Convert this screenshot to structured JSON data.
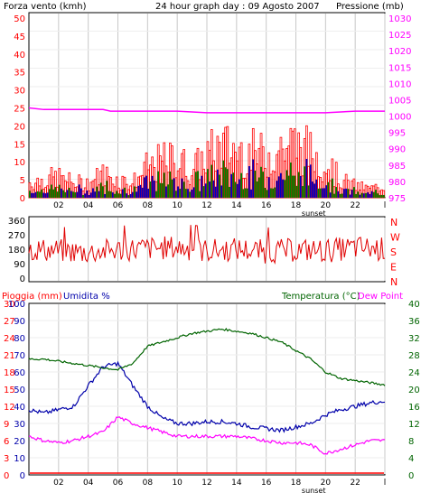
{
  "header": {
    "left_label": "Forza vento (kmh)",
    "center_label": "24 hour graph day : 09 Agosto 2007",
    "right_label": "Pressione (mb)"
  },
  "colors": {
    "wind": "#ff0000",
    "wind_avg": "#0000c0",
    "wind_low": "#008000",
    "pressure": "#ff00ff",
    "direction": "#e00000",
    "humidity": "#0000aa",
    "temperature": "#006400",
    "dewpoint": "#ff00ff",
    "rain": "#ff0000",
    "frame": "#000000",
    "grid": "#c8c8c8"
  },
  "x_ticks": [
    "02",
    "04",
    "06",
    "08",
    "10",
    "12",
    "14",
    "16",
    "18",
    "20",
    "22",
    "l"
  ],
  "sunset_label": "sunset",
  "panel_wind": {
    "left_ticks": [
      "0",
      "5",
      "10",
      "15",
      "20",
      "25",
      "30",
      "35",
      "40",
      "45",
      "50"
    ],
    "right_ticks": [
      "975",
      "980",
      "985",
      "990",
      "995",
      "1000",
      "1005",
      "1010",
      "1015",
      "1020",
      "1025",
      "1030"
    ]
  },
  "panel_direction": {
    "left_ticks": [
      "0",
      "90",
      "180",
      "270",
      "360"
    ],
    "right_letters": [
      "N",
      "W",
      "S",
      "E",
      "N"
    ]
  },
  "panel_temp": {
    "left_label_rain": "Pioggia (mm)",
    "left_label_hum": "Umidita %",
    "right_label_temp": "Temperatura (°C)",
    "right_label_dew": "Dew Point",
    "rain_ticks": [
      "0",
      "3",
      "6",
      "9",
      "12",
      "15",
      "18",
      "21",
      "24",
      "27",
      "30"
    ],
    "hum_ticks": [
      "0",
      "10",
      "20",
      "30",
      "40",
      "50",
      "60",
      "70",
      "80",
      "90",
      "100"
    ],
    "temp_ticks": [
      "0",
      "4",
      "8",
      "12",
      "16",
      "20",
      "24",
      "28",
      "32",
      "36",
      "40"
    ]
  },
  "chart_data": [
    {
      "type": "bar",
      "title": "24 hour graph day : 09 Agosto 2007",
      "xlabel": "",
      "ylabel": "Forza vento (kmh)",
      "ylim": [
        0,
        50
      ],
      "y2label": "Pressione (mb)",
      "y2lim": [
        975,
        1030
      ],
      "x_hours": [
        0,
        24
      ],
      "series": [
        {
          "name": "Forza vento (kmh)",
          "kind": "wind_gust_bars",
          "x": [
            0,
            1,
            2,
            3,
            4,
            5,
            6,
            7,
            8,
            9,
            10,
            11,
            12,
            13,
            14,
            15,
            16,
            17,
            18,
            19,
            20,
            21,
            22,
            23,
            24
          ],
          "values": [
            5,
            6,
            7,
            5,
            5,
            8,
            6,
            5,
            10,
            12,
            13,
            9,
            14,
            17,
            16,
            15,
            14,
            17,
            18,
            15,
            12,
            6,
            4,
            3,
            4
          ]
        },
        {
          "name": "Pressione (mb)",
          "kind": "line",
          "x": [
            0,
            1,
            5,
            5.5,
            6,
            10,
            12,
            15,
            20,
            22,
            24
          ],
          "values": [
            1002.5,
            1002,
            1002,
            1001.5,
            1001.5,
            1001.5,
            1001,
            1001,
            1001,
            1001.5,
            1001.5
          ]
        }
      ],
      "grid": true
    },
    {
      "type": "line",
      "title": "",
      "ylabel": "",
      "ylim": [
        0,
        360
      ],
      "y2_labels": [
        "N",
        "W",
        "S",
        "E",
        "N"
      ],
      "x_hours": [
        0,
        24
      ],
      "series": [
        {
          "name": "",
          "x": [
            0,
            2,
            4,
            6,
            8,
            10,
            12,
            14,
            16,
            18,
            20,
            22,
            24
          ],
          "values": [
            180,
            170,
            160,
            175,
            185,
            190,
            170,
            180,
            165,
            175,
            170,
            190,
            180
          ]
        }
      ],
      "grid": true
    },
    {
      "type": "line",
      "title": "",
      "xlabel": "",
      "ylabel": "Pioggia (mm) / Umidita %",
      "ylim_rain": [
        0,
        30
      ],
      "ylim_humidity": [
        0,
        100
      ],
      "y2label": "Temperatura (°C) / Dew Point",
      "y2lim": [
        0,
        40
      ],
      "x_hours": [
        0,
        24
      ],
      "series": [
        {
          "name": "Umidita %",
          "x": [
            0,
            1,
            2,
            3,
            4,
            5,
            6,
            7,
            8,
            9,
            10,
            11,
            12,
            13,
            14,
            15,
            16,
            17,
            18,
            19,
            20,
            21,
            22,
            23,
            24
          ],
          "values": [
            38,
            36,
            38,
            40,
            52,
            63,
            65,
            52,
            40,
            33,
            30,
            30,
            31,
            31,
            30,
            28,
            27,
            26,
            28,
            30,
            35,
            38,
            40,
            42,
            43
          ]
        },
        {
          "name": "Temperatura (°C)",
          "x": [
            0,
            1,
            2,
            3,
            4,
            5,
            6,
            7,
            8,
            9,
            10,
            11,
            12,
            13,
            14,
            15,
            16,
            17,
            18,
            19,
            20,
            21,
            22,
            23,
            24
          ],
          "values": [
            27,
            27,
            26.5,
            26,
            25.5,
            25,
            24.5,
            26,
            30,
            31,
            32,
            33,
            33.5,
            34,
            33.5,
            33,
            32,
            31,
            29,
            27,
            24,
            22.5,
            22,
            21.5,
            21
          ]
        },
        {
          "name": "Dew Point",
          "x": [
            0,
            1,
            2,
            3,
            4,
            5,
            6,
            7,
            8,
            9,
            10,
            11,
            12,
            13,
            14,
            15,
            16,
            17,
            18,
            19,
            20,
            21,
            22,
            23,
            24
          ],
          "values": [
            9,
            8,
            7.5,
            8,
            9,
            10,
            13.5,
            12,
            11,
            10,
            9,
            9,
            9,
            9,
            9,
            8.5,
            8,
            7.5,
            7.5,
            7,
            5,
            6,
            7,
            8,
            8
          ]
        },
        {
          "name": "Pioggia (mm)",
          "x": [
            0,
            24
          ],
          "values": [
            0,
            0
          ]
        }
      ],
      "grid": true
    }
  ]
}
